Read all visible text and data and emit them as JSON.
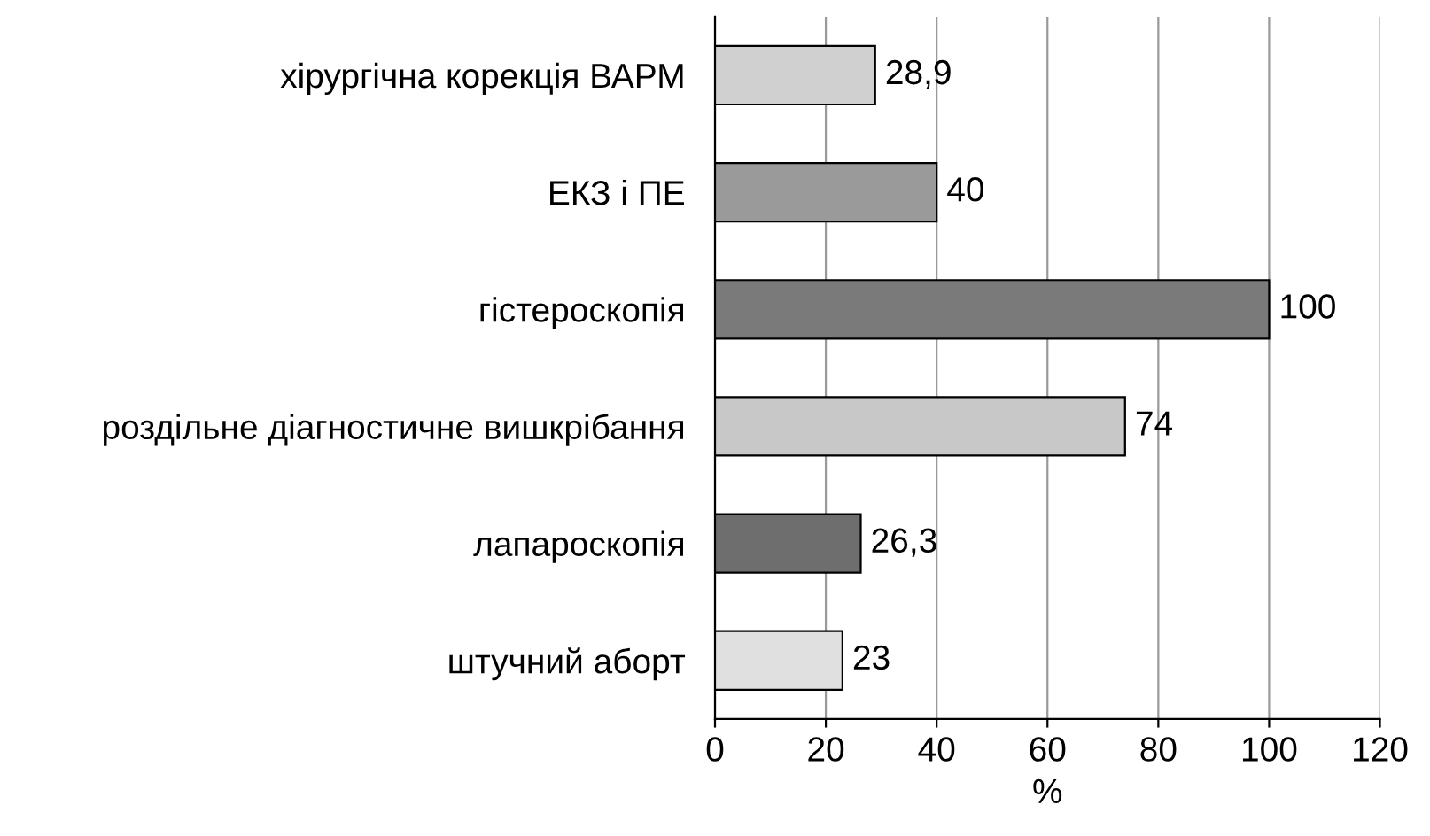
{
  "chart_data": {
    "type": "bar",
    "orientation": "horizontal",
    "xlabel": "%",
    "categories": [
      "хірургічна корекція ВАРМ",
      "ЕКЗ і ПЕ",
      "гістероскопія",
      "роздільне діагностичне вишкрібання",
      "лапароскопія",
      "штучний аборт"
    ],
    "values": [
      28.9,
      40,
      100,
      74,
      26.3,
      23
    ],
    "value_labels": [
      "28,9",
      "40",
      "100",
      "74",
      "26,3",
      "23"
    ],
    "colors": [
      "#d0d0d0",
      "#9a9a9a",
      "#7a7a7a",
      "#c8c8c8",
      "#6e6e6e",
      "#e0e0e0"
    ],
    "xlim": [
      0,
      120
    ],
    "xticks": [
      0,
      20,
      40,
      60,
      80,
      100,
      120
    ],
    "grid": "x",
    "legend": false
  }
}
